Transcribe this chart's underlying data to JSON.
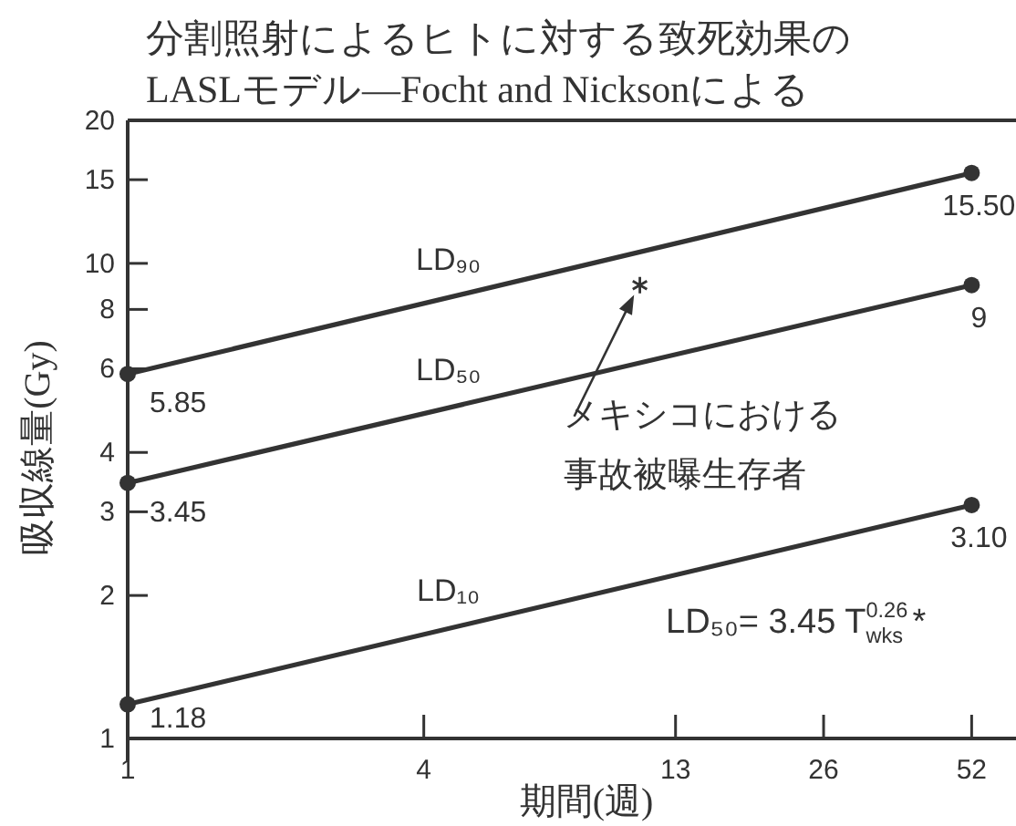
{
  "chart_data": {
    "type": "line",
    "title": "分割照射によるヒトに対する致死効果の\nLASLモデル—Focht and Nicksonによる",
    "xlabel": "期間(週)",
    "ylabel": "吸収線量(Gy)",
    "log": "xy",
    "xlim": [
      1,
      64
    ],
    "ylim": [
      1,
      20
    ],
    "xticks": [
      1,
      4,
      13,
      26,
      52
    ],
    "yticks": [
      1,
      2,
      3,
      4,
      6,
      8,
      10,
      15,
      20
    ],
    "marker": "circle",
    "line_style": "solid",
    "series": [
      {
        "name": "LD₉₀",
        "color": "#333333",
        "x": [
          1,
          52
        ],
        "values": [
          5.85,
          15.5
        ],
        "value_labels": [
          "5.85",
          "15.50"
        ]
      },
      {
        "name": "LD₅₀",
        "color": "#333333",
        "x": [
          1,
          52
        ],
        "values": [
          3.45,
          9
        ],
        "value_labels": [
          "3.45",
          "9"
        ]
      },
      {
        "name": "LD₁₀",
        "color": "#333333",
        "x": [
          1,
          52
        ],
        "values": [
          1.18,
          3.1
        ],
        "value_labels": [
          "1.18",
          "3.10"
        ]
      },
      {
        "type": "scatter",
        "marker": "cross",
        "color": "#333333",
        "x": [
          11
        ],
        "values": [
          9
        ]
      }
    ],
    "annotations": [
      "メキシコにおける事故被曝生存者",
      "LD₅₀= 3.45 T$^{0.26}$$_{wks}$ *"
    ]
  }
}
